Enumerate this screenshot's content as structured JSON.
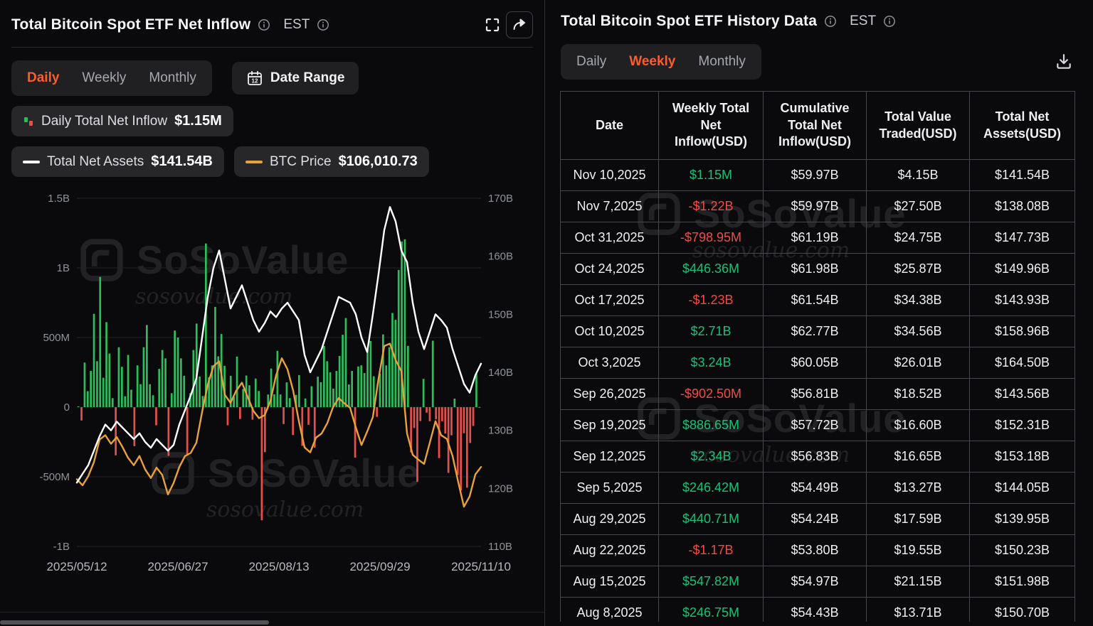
{
  "watermark": {
    "brand": "SoSoValue",
    "domain": "sosovalue.com"
  },
  "left_panel": {
    "title": "Total Bitcoin Spot ETF Net Inflow",
    "est_label": "EST",
    "tabs": [
      "Daily",
      "Weekly",
      "Monthly"
    ],
    "active_tab": "Daily",
    "date_range_label": "Date Range",
    "legend": [
      {
        "label": "Daily Total Net Inflow",
        "value": "$1.15M"
      },
      {
        "label": "Total Net Assets",
        "value": "$141.54B"
      },
      {
        "label": "BTC Price",
        "value": "$106,010.73"
      }
    ]
  },
  "right_panel": {
    "title": "Total Bitcoin Spot ETF History Data",
    "est_label": "EST",
    "tabs": [
      "Daily",
      "Weekly",
      "Monthly"
    ],
    "active_tab": "Weekly",
    "table": {
      "columns": [
        "Date",
        "Weekly Total Net Inflow(USD)",
        "Cumulative Total Net Inflow(USD)",
        "Total Value Traded(USD)",
        "Total Net Assets(USD)"
      ],
      "rows": [
        [
          "Nov 10,2025",
          "$1.15M",
          "$59.97B",
          "$4.15B",
          "$141.54B"
        ],
        [
          "Nov 7,2025",
          "-$1.22B",
          "$59.97B",
          "$27.50B",
          "$138.08B"
        ],
        [
          "Oct 31,2025",
          "-$798.95M",
          "$61.19B",
          "$24.75B",
          "$147.73B"
        ],
        [
          "Oct 24,2025",
          "$446.36M",
          "$61.98B",
          "$25.87B",
          "$149.96B"
        ],
        [
          "Oct 17,2025",
          "-$1.23B",
          "$61.54B",
          "$34.38B",
          "$143.93B"
        ],
        [
          "Oct 10,2025",
          "$2.71B",
          "$62.77B",
          "$34.56B",
          "$158.96B"
        ],
        [
          "Oct 3,2025",
          "$3.24B",
          "$60.05B",
          "$26.01B",
          "$164.50B"
        ],
        [
          "Sep 26,2025",
          "-$902.50M",
          "$56.81B",
          "$18.52B",
          "$143.56B"
        ],
        [
          "Sep 19,2025",
          "$886.65M",
          "$57.72B",
          "$16.60B",
          "$152.31B"
        ],
        [
          "Sep 12,2025",
          "$2.34B",
          "$56.83B",
          "$16.65B",
          "$153.18B"
        ],
        [
          "Sep 5,2025",
          "$246.42M",
          "$54.49B",
          "$13.27B",
          "$144.05B"
        ],
        [
          "Aug 29,2025",
          "$440.71M",
          "$54.24B",
          "$17.59B",
          "$139.95B"
        ],
        [
          "Aug 22,2025",
          "-$1.17B",
          "$53.80B",
          "$19.55B",
          "$150.23B"
        ],
        [
          "Aug 15,2025",
          "$547.82M",
          "$54.97B",
          "$21.15B",
          "$151.98B"
        ],
        [
          "Aug 8,2025",
          "$246.75M",
          "$54.43B",
          "$13.71B",
          "$150.70B"
        ]
      ]
    }
  },
  "chart_data": {
    "type": "bar",
    "title": "Total Bitcoin Spot ETF Net Inflow (daily bars) with Total Net Assets and BTC Price lines",
    "x_ticks": [
      "2025/05/12",
      "2025/06/27",
      "2025/08/13",
      "2025/09/29",
      "2025/11/10"
    ],
    "left_axis": {
      "ticks": [
        [
          "1.5B",
          1500
        ],
        [
          "1B",
          1000
        ],
        [
          "500M",
          500
        ],
        [
          "0",
          0
        ],
        [
          "-500M",
          -500
        ],
        [
          "-1B",
          -1000
        ]
      ],
      "range_m": [
        -1000,
        1500
      ]
    },
    "right_axis": {
      "ticks": [
        [
          "170B",
          170
        ],
        [
          "160B",
          160
        ],
        [
          "150B",
          150
        ],
        [
          "140B",
          140
        ],
        [
          "130B",
          130
        ],
        [
          "120B",
          120
        ],
        [
          "110B",
          110
        ]
      ],
      "range_b": [
        110,
        170
      ]
    },
    "btc_axis_range": [
      93000,
      150000
    ],
    "grid": true,
    "legend_position": "top",
    "series": {
      "daily_net_inflow_musd": {
        "type": "bar",
        "color_pos": "#2EBD5B",
        "color_neg": "#E5504C",
        "values": [
          5,
          -96,
          320,
          115,
          260,
          670,
          330,
          935,
          211,
          610,
          385,
          65,
          -346,
          430,
          290,
          78,
          375,
          125,
          -280,
          300,
          165,
          430,
          590,
          165,
          85,
          -130,
          275,
          410,
          350,
          -350,
          100,
          550,
          500,
          350,
          225,
          -340,
          100,
          410,
          600,
          220,
          80,
          1175,
          215,
          300,
          720,
          365,
          525,
          297,
          -130,
          225,
          75,
          363,
          -85,
          130,
          227,
          157,
          -90,
          205,
          116,
          -812,
          -323,
          91,
          277,
          92,
          404,
          91,
          -121,
          178,
          65,
          -200,
          88,
          230,
          -278,
          62,
          -127,
          150,
          -291,
          219,
          179,
          440,
          330,
          250,
          133,
          260,
          368,
          520,
          640,
          163,
          260,
          -363,
          292,
          300,
          245,
          418,
          475,
          222,
          -70,
          241,
          522,
          300,
          430,
          676,
          627,
          985,
          1190,
          1205,
          440,
          -325,
          -150,
          -536,
          -100,
          203,
          -40,
          -101,
          477,
          -88,
          -366,
          -101,
          -190,
          -472,
          -202,
          61,
          -488,
          -599,
          -187,
          -578,
          -257,
          -135,
          240,
          1
        ]
      },
      "total_net_assets_busd": {
        "type": "line",
        "color": "#FFFFFF",
        "values": [
          121,
          122.5,
          124,
          126.5,
          129,
          131,
          130,
          131.5,
          130.5,
          129.5,
          128.5,
          129.5,
          128,
          127,
          128.5,
          127.5,
          126.5,
          127.5,
          131,
          133.5,
          136,
          139,
          146,
          153,
          158,
          161,
          156,
          151,
          153,
          155,
          152,
          149,
          147,
          148.5,
          150.5,
          149.5,
          151,
          152,
          150.5,
          149,
          143,
          140,
          142,
          144,
          147,
          150,
          153,
          152.5,
          152,
          150,
          146,
          143.5,
          150,
          157,
          164.5,
          168.5,
          166,
          161,
          159,
          152,
          147,
          144,
          147,
          150,
          149,
          147.7,
          144,
          141,
          138,
          136.5,
          139.5,
          141.5
        ]
      },
      "btc_price_usd": {
        "type": "line",
        "color": "#E9A23B",
        "values": [
          104000,
          103000,
          104500,
          106800,
          110500,
          111200,
          109800,
          110900,
          109300,
          107500,
          106300,
          107800,
          105600,
          104200,
          105900,
          104700,
          101500,
          103400,
          106000,
          107800,
          108300,
          110000,
          115000,
          119500,
          122500,
          123300,
          117800,
          116500,
          118500,
          119800,
          117500,
          115200,
          114000,
          114500,
          116800,
          121000,
          123800,
          122000,
          118500,
          113500,
          109200,
          108400,
          110800,
          111500,
          113200,
          115800,
          117300,
          116400,
          115700,
          112500,
          109600,
          111800,
          114200,
          120500,
          125800,
          126200,
          123500,
          121700,
          111500,
          108000,
          107200,
          106500,
          110000,
          113500,
          111200,
          110600,
          107800,
          103500,
          99500,
          101200,
          104800,
          106010
        ]
      }
    }
  }
}
